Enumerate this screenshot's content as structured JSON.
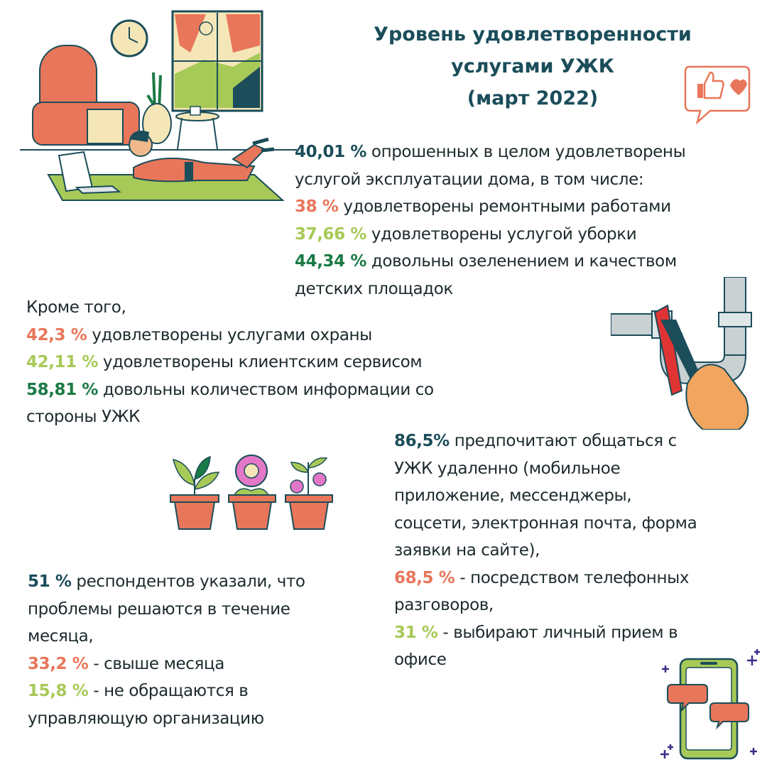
{
  "title": {
    "line1": "Уровень удовлетворенности",
    "line2": "услугами УЖК",
    "line3": "(март 2022)"
  },
  "block1": {
    "line1_pct": "40,01 %",
    "line1_text": " опрошенных в целом удовлетворены",
    "line2_text": "услугой эксплуатации дома, в том числе:",
    "line3_pct": "38 %",
    "line3_text": " удовлетворены ремонтными работами",
    "line4_pct": "37,66 %",
    "line4_text": " удовлетворены услугой уборки",
    "line5_pct": "44,34 %",
    "line5_text": " довольны озеленением и качеством",
    "line6_text": "детских площадок"
  },
  "block2": {
    "intro": "Кроме того,",
    "line2_pct": "42,3 %",
    "line2_text": " удовлетворены услугами охраны",
    "line3_pct": "42,11 %",
    "line3_text": " удовлетворены клиентским сервисом",
    "line4_pct": "58,81 %",
    "line4_text": " довольны количеством информации со",
    "line5_text": "стороны УЖК"
  },
  "block3": {
    "line1_pct": "86,5%",
    "line1_text": " предпочитают общаться с",
    "line2_text": "УЖК удаленно (мобильное",
    "line3_text": "приложение, мессенджеры,",
    "line4_text": "соцсети, электронная почта, форма",
    "line5_text": "заявки на сайте),",
    "line6_pct": "68,5 %",
    "line6_text": " - посредством телефонных",
    "line7_text": "разговоров,",
    "line8_pct": "31 %",
    "line8_text": " - выбирают личный прием в",
    "line9_text": "офисе"
  },
  "block4": {
    "line1_pct": "51 %",
    "line1_text": " респондентов указали, что",
    "line2_text": "проблемы решаются в течение",
    "line3_text": "месяца,",
    "line4_pct": "33,2 %",
    "line4_text": " - свыше месяца",
    "line5_pct": "15,8 %",
    "line5_text": " - не обращаются в",
    "line6_text": "управляющую организацию"
  },
  "colors": {
    "teal": "#1b4d5a",
    "orange": "#e8765a",
    "lime": "#a7c957",
    "green": "#1a7a45"
  },
  "icons": [
    "living-room-illustration",
    "like-heart-bubble-icon",
    "pipe-wrench-illustration",
    "flower-pots-illustration",
    "phone-chat-illustration"
  ]
}
